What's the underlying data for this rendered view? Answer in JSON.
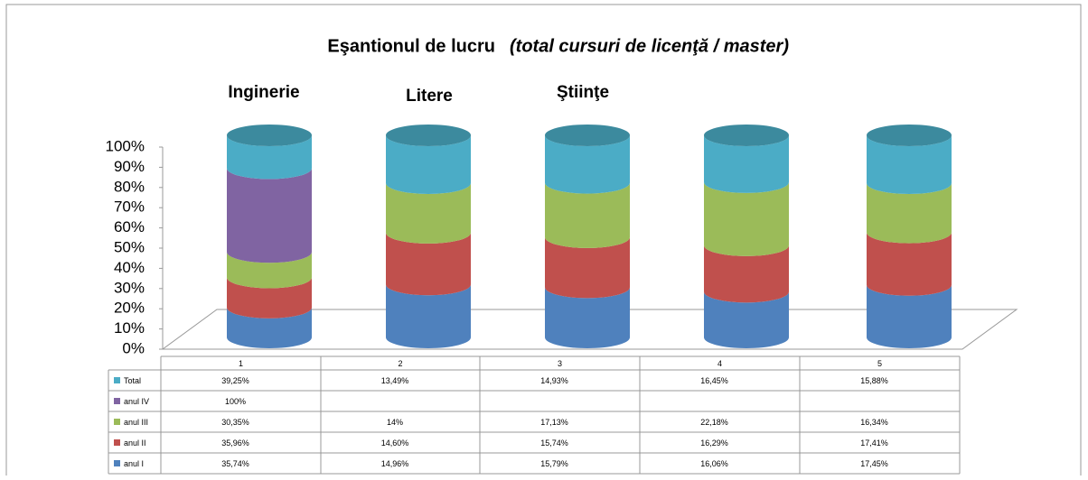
{
  "chart_data": {
    "type": "bar3d_stacked_percent",
    "title": "Eşantionul de lucru",
    "subtitle": "(total cursuri de licenţă / master)",
    "annotations": [
      "Inginerie",
      "Litere",
      "Ştiinţe"
    ],
    "categories": [
      "1",
      "2",
      "3",
      "4",
      "5"
    ],
    "ylim": [
      0,
      100
    ],
    "yticks": [
      {
        "value": 0,
        "label": "0%"
      },
      {
        "value": 10,
        "label": "10%"
      },
      {
        "value": 20,
        "label": "20%"
      },
      {
        "value": 30,
        "label": "30%"
      },
      {
        "value": 40,
        "label": "40%"
      },
      {
        "value": 50,
        "label": "50%"
      },
      {
        "value": 60,
        "label": "60%"
      },
      {
        "value": 70,
        "label": "70%"
      },
      {
        "value": 80,
        "label": "80%"
      },
      {
        "value": 90,
        "label": "90%"
      },
      {
        "value": 100,
        "label": "100%"
      }
    ],
    "series": [
      {
        "name": "anul I",
        "color": "#4f81bd",
        "values": [
          35.74,
          14.96,
          15.79,
          16.06,
          17.45
        ],
        "value_labels": [
          "35,74%",
          "14,96%",
          "15,79%",
          "16,06%",
          "17,45%"
        ]
      },
      {
        "name": "anul II",
        "color": "#c0504d",
        "values": [
          35.96,
          14.6,
          15.74,
          16.29,
          17.41
        ],
        "value_labels": [
          "35,96%",
          "14,60%",
          "15,74%",
          "16,29%",
          "17,41%"
        ]
      },
      {
        "name": "anul III",
        "color": "#9bbb59",
        "values": [
          30.35,
          14,
          17.13,
          22.18,
          16.34
        ],
        "value_labels": [
          "30,35%",
          "14%",
          "17,13%",
          "22,18%",
          "16,34%"
        ]
      },
      {
        "name": "anul IV",
        "color": "#8064a2",
        "values": [
          100,
          null,
          null,
          null,
          null
        ],
        "value_labels": [
          "100%",
          null,
          null,
          null,
          null
        ]
      },
      {
        "name": "Total",
        "color": "#4bacc6",
        "values": [
          39.25,
          13.49,
          14.93,
          16.45,
          15.88
        ],
        "value_labels": [
          "39,25%",
          "13,49%",
          "14,93%",
          "16,45%",
          "15,88%"
        ]
      }
    ]
  }
}
